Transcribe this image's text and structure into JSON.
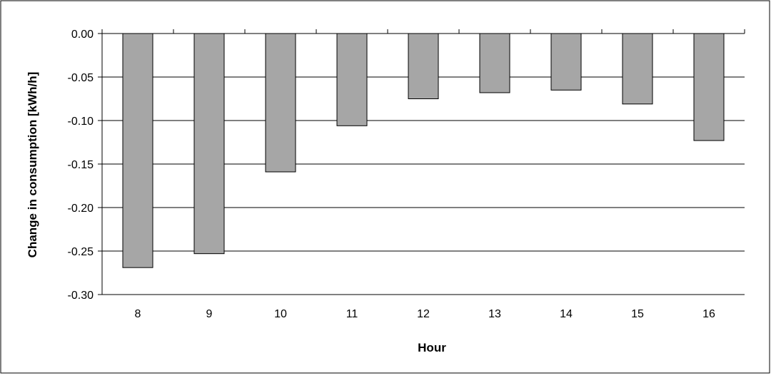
{
  "chart_data": {
    "type": "bar",
    "xlabel": "Hour",
    "ylabel": "Change in consumption [kWh/h]",
    "categories": [
      "8",
      "9",
      "10",
      "11",
      "12",
      "13",
      "14",
      "15",
      "16"
    ],
    "values": [
      -0.269,
      -0.253,
      -0.159,
      -0.106,
      -0.075,
      -0.068,
      -0.065,
      -0.081,
      -0.123
    ],
    "ylim": [
      -0.3,
      0.0
    ],
    "yticks": [
      "0.00",
      "-0.05",
      "-0.10",
      "-0.15",
      "-0.20",
      "-0.25",
      "-0.30"
    ],
    "grid": true,
    "legend": "none",
    "colors": {
      "bar_fill": "#a6a6a6",
      "bar_stroke": "#000000",
      "gridline": "#000000",
      "frame": "#000000"
    }
  }
}
